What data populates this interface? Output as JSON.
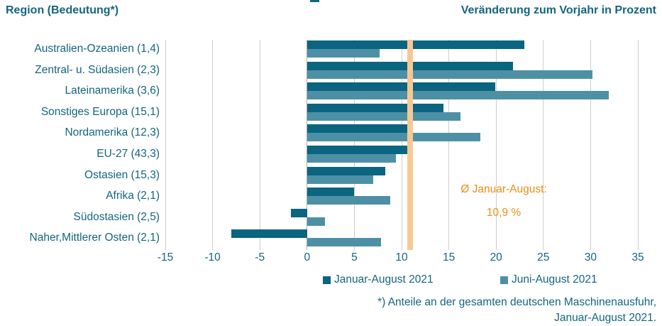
{
  "header": {
    "left": "Region (Bedeutung*)",
    "right": "Veränderung zum Vorjahr in Prozent"
  },
  "chart_data": {
    "type": "bar",
    "orientation": "horizontal",
    "title": "",
    "ylabel": "Region (Bedeutung*)",
    "xlabel": "Veränderung zum Vorjahr in Prozent",
    "xlim": [
      -15,
      35
    ],
    "x_ticks": [
      -15,
      -10,
      -5,
      0,
      5,
      10,
      15,
      20,
      25,
      30,
      35
    ],
    "grid": true,
    "legend_position": "bottom",
    "categories": [
      "Australien-Ozeanien (1,4)",
      "Zentral- u. Südasien (2,3)",
      "Lateinamerika (3,6)",
      "Sonstiges Europa (15,1)",
      "Nordamerika (12,3)",
      "EU-27 (43,3)",
      "Ostasien (15,3)",
      "Afrika (2,1)",
      "Südostasien (2,5)",
      "Naher,Mittlerer Osten (2,1)"
    ],
    "series": [
      {
        "name": "Januar-August 2021",
        "color": "#0B6480",
        "values": [
          23.0,
          21.8,
          19.9,
          14.4,
          11.0,
          10.7,
          8.3,
          5.0,
          -1.7,
          -8.0
        ]
      },
      {
        "name": "Juni-August 2021",
        "color": "#4D90A5",
        "values": [
          7.7,
          30.2,
          31.9,
          16.2,
          18.3,
          9.4,
          7.0,
          8.8,
          1.9,
          7.8
        ]
      }
    ],
    "average_line": {
      "value": 10.9,
      "color": "#F8C893",
      "label_line1": "Ø Januar-August:",
      "label_line2": "10,9 %",
      "label_color": "#EF8D15"
    }
  },
  "colors": {
    "text_teal": "#14657F",
    "gridline": "#CDCDCD",
    "zero_line": "#ADADAD"
  },
  "footnote": {
    "line1": "*) Anteile an der gesamten deutschen Maschinenausfuhr,",
    "line2": "Januar-August 2021."
  }
}
